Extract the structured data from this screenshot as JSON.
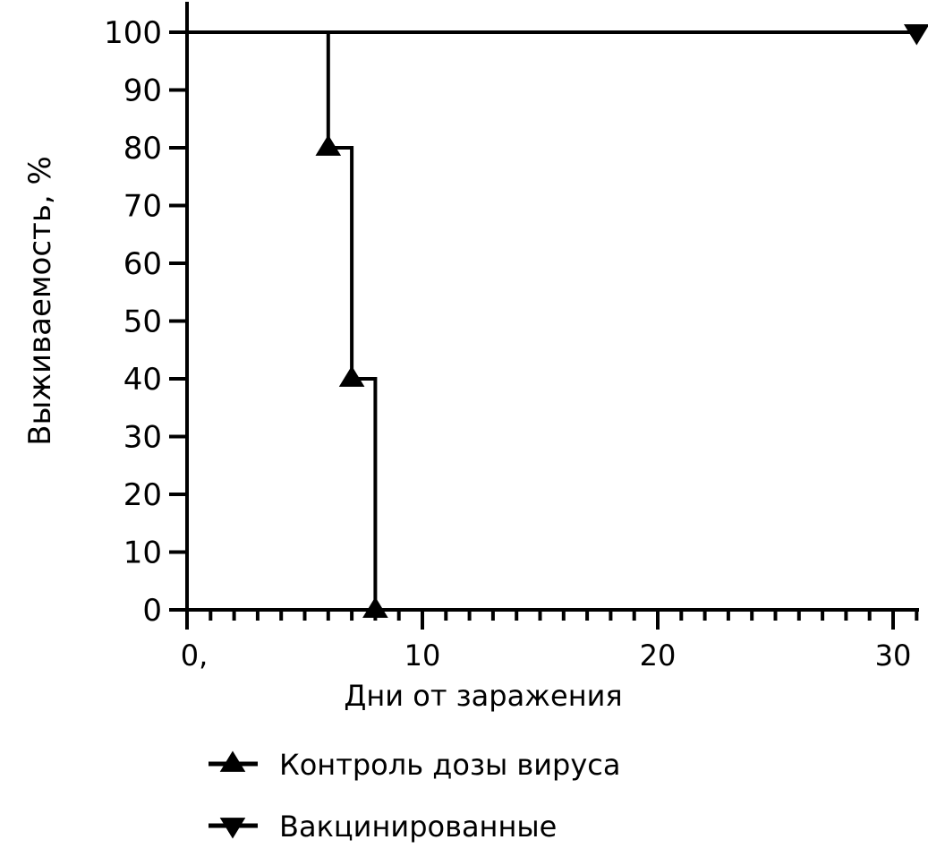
{
  "chart_data": {
    "type": "line",
    "xlabel": "Дни от заражения",
    "ylabel": "Выживаемость, %",
    "xlim": [
      0,
      31
    ],
    "ylim": [
      0,
      100
    ],
    "x_ticks": [
      "0,",
      "10",
      "20",
      "30"
    ],
    "y_ticks": [
      "0",
      "10",
      "20",
      "30",
      "40",
      "50",
      "60",
      "70",
      "80",
      "90",
      "100"
    ],
    "series": [
      {
        "name": "Контроль дозы вируса",
        "marker": "triangle-up",
        "step_points": [
          [
            0,
            100
          ],
          [
            6,
            100
          ],
          [
            6,
            80
          ],
          [
            7,
            80
          ],
          [
            7,
            40
          ],
          [
            8,
            40
          ],
          [
            8,
            0
          ]
        ],
        "markers": [
          [
            6,
            80
          ],
          [
            7,
            40
          ],
          [
            8,
            0
          ]
        ]
      },
      {
        "name": "Вакцинированные",
        "marker": "triangle-down",
        "step_points": [
          [
            0,
            100
          ],
          [
            31,
            100
          ]
        ],
        "markers": [
          [
            31,
            100
          ]
        ]
      }
    ],
    "grid": false,
    "legend_position": "bottom"
  }
}
